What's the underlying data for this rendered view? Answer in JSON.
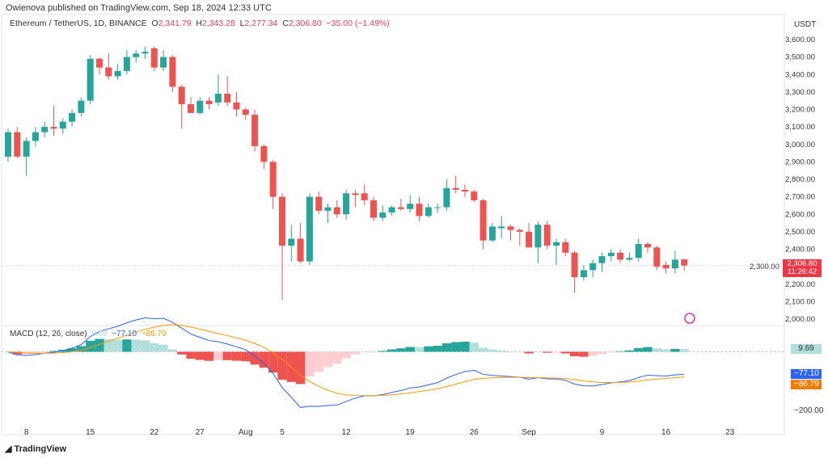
{
  "publisher_line": "Owienova published on TradingView.com, Sep 18, 2024 12:33 UTC",
  "symbol": "Ethereum / TetherUS, 1D, BINANCE",
  "ohlc": {
    "o_label": "O",
    "o": "2,341.79",
    "h_label": "H",
    "h": "2,343.28",
    "l_label": "L",
    "l": "2,277.34",
    "c_label": "C",
    "c": "2,306.80",
    "change": "−35.00 (−1.49%)"
  },
  "currency": "USDT",
  "last_price": "2,306.80",
  "countdown": "11:26:42",
  "macd": {
    "label": "MACD (12, 26, close)",
    "hist": "9.69",
    "macd": "−77.10",
    "signal": "−86.79",
    "axis_label": "−200.00"
  },
  "footer": "TradingView",
  "colors": {
    "up": "#26a69a",
    "down": "#ef5350",
    "macd": "#2962ff",
    "signal": "#ff9800"
  },
  "chart_data": {
    "type": "candlestick",
    "ylim": [
      2000,
      3600
    ],
    "y_ticks": [
      "3,600.00",
      "3,500.00",
      "3,400.00",
      "3,300.00",
      "3,200.00",
      "3,100.00",
      "3,000.00",
      "2,900.00",
      "2,800.00",
      "2,700.00",
      "2,600.00",
      "2,500.00",
      "2,400.00",
      "2,300.00",
      "2,200.00",
      "2,100.00",
      "2,000.00"
    ],
    "x_ticks": [
      "8",
      "15",
      "22",
      "27",
      "Aug",
      "5",
      "12",
      "19",
      "26",
      "Sep",
      "9",
      "16",
      "23"
    ],
    "candles": [
      [
        2930,
        3090,
        2900,
        3070
      ],
      [
        3070,
        3100,
        2920,
        2930
      ],
      [
        2930,
        3040,
        2820,
        3020
      ],
      [
        3020,
        3100,
        2990,
        3070
      ],
      [
        3070,
        3130,
        3040,
        3100
      ],
      [
        3100,
        3220,
        3050,
        3090
      ],
      [
        3090,
        3150,
        3060,
        3130
      ],
      [
        3130,
        3200,
        3100,
        3180
      ],
      [
        3180,
        3270,
        3160,
        3250
      ],
      [
        3250,
        3510,
        3230,
        3490
      ],
      [
        3490,
        3500,
        3400,
        3440
      ],
      [
        3440,
        3520,
        3370,
        3390
      ],
      [
        3390,
        3460,
        3370,
        3420
      ],
      [
        3420,
        3540,
        3400,
        3500
      ],
      [
        3500,
        3540,
        3470,
        3520
      ],
      [
        3520,
        3560,
        3490,
        3530
      ],
      [
        3550,
        3560,
        3420,
        3440
      ],
      [
        3440,
        3540,
        3420,
        3500
      ],
      [
        3500,
        3510,
        3300,
        3330
      ],
      [
        3330,
        3340,
        3090,
        3230
      ],
      [
        3230,
        3270,
        3180,
        3180
      ],
      [
        3180,
        3270,
        3170,
        3250
      ],
      [
        3250,
        3270,
        3200,
        3230
      ],
      [
        3240,
        3400,
        3220,
        3290
      ],
      [
        3290,
        3390,
        3220,
        3240
      ],
      [
        3240,
        3300,
        3160,
        3200
      ],
      [
        3200,
        3210,
        3140,
        3170
      ],
      [
        3170,
        3200,
        2960,
        2990
      ],
      [
        2990,
        3000,
        2860,
        2900
      ],
      [
        2900,
        2910,
        2630,
        2700
      ],
      [
        2700,
        2720,
        2110,
        2420
      ],
      [
        2420,
        2540,
        2330,
        2460
      ],
      [
        2460,
        2550,
        2320,
        2330
      ],
      [
        2330,
        2720,
        2310,
        2700
      ],
      [
        2700,
        2730,
        2600,
        2620
      ],
      [
        2620,
        2660,
        2550,
        2640
      ],
      [
        2640,
        2680,
        2580,
        2600
      ],
      [
        2600,
        2740,
        2570,
        2720
      ],
      [
        2720,
        2740,
        2640,
        2710
      ],
      [
        2720,
        2770,
        2650,
        2680
      ],
      [
        2680,
        2700,
        2560,
        2580
      ],
      [
        2580,
        2650,
        2560,
        2610
      ],
      [
        2610,
        2650,
        2590,
        2640
      ],
      [
        2640,
        2690,
        2620,
        2630
      ],
      [
        2630,
        2710,
        2610,
        2660
      ],
      [
        2660,
        2700,
        2560,
        2590
      ],
      [
        2590,
        2660,
        2580,
        2640
      ],
      [
        2640,
        2660,
        2610,
        2640
      ],
      [
        2640,
        2800,
        2620,
        2750
      ],
      [
        2750,
        2820,
        2720,
        2740
      ],
      [
        2740,
        2770,
        2700,
        2730
      ],
      [
        2730,
        2740,
        2670,
        2680
      ],
      [
        2680,
        2690,
        2400,
        2450
      ],
      [
        2450,
        2550,
        2440,
        2530
      ],
      [
        2520,
        2590,
        2460,
        2530
      ],
      [
        2530,
        2540,
        2450,
        2510
      ],
      [
        2510,
        2520,
        2420,
        2500
      ],
      [
        2500,
        2550,
        2410,
        2410
      ],
      [
        2410,
        2560,
        2320,
        2540
      ],
      [
        2540,
        2560,
        2400,
        2420
      ],
      [
        2420,
        2460,
        2310,
        2440
      ],
      [
        2440,
        2460,
        2360,
        2380
      ],
      [
        2380,
        2390,
        2150,
        2240
      ],
      [
        2240,
        2310,
        2220,
        2280
      ],
      [
        2280,
        2340,
        2240,
        2320
      ],
      [
        2320,
        2380,
        2270,
        2360
      ],
      [
        2360,
        2400,
        2330,
        2380
      ],
      [
        2380,
        2400,
        2320,
        2340
      ],
      [
        2340,
        2380,
        2330,
        2350
      ],
      [
        2350,
        2460,
        2330,
        2430
      ],
      [
        2430,
        2440,
        2380,
        2410
      ],
      [
        2410,
        2420,
        2280,
        2300
      ],
      [
        2310,
        2330,
        2260,
        2290
      ],
      [
        2290,
        2390,
        2260,
        2340
      ],
      [
        2341.79,
        2343.28,
        2277.34,
        2306.8
      ]
    ]
  }
}
